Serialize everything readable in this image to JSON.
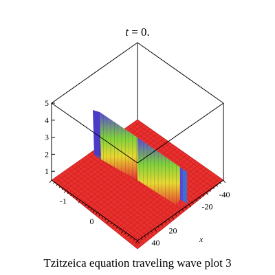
{
  "chart_data": {
    "type": "surface3d",
    "title": {
      "var": "t",
      "rest": " = 0."
    },
    "caption": "Tzitzeica equation  traveling wave plot 3",
    "x_axis": {
      "label": "x",
      "ticks": [
        "-40",
        "-20",
        "20",
        "40"
      ],
      "tick_values": [
        -40,
        -20,
        20,
        40
      ],
      "range": [
        -50,
        50
      ]
    },
    "y_axis": {
      "ticks": [
        "-1",
        "0"
      ],
      "tick_values": [
        -1,
        0
      ],
      "range": [
        -1.5,
        1.5
      ]
    },
    "z_axis": {
      "ticks": [
        "1",
        "2",
        "3",
        "4",
        "5"
      ],
      "tick_values": [
        1,
        2,
        3,
        4,
        5
      ],
      "range": [
        0,
        5
      ]
    },
    "surface": {
      "base_level": 0.6,
      "profile": [
        {
          "x": -50,
          "z": 0.6
        },
        {
          "x": -20,
          "z": 0.6
        },
        {
          "x": -11,
          "z": 0.62
        },
        {
          "x": -10,
          "z": 0.8
        },
        {
          "x": -9.5,
          "z": 2.3
        },
        {
          "x": -9,
          "z": 2.9
        },
        {
          "x": -6,
          "z": 2.5
        },
        {
          "x": -3,
          "z": 2.2
        },
        {
          "x": 0,
          "z": 2.4
        },
        {
          "x": 3,
          "z": 3.0
        },
        {
          "x": 6,
          "z": 3.7
        },
        {
          "x": 10,
          "z": 4.45
        },
        {
          "x": 11,
          "z": 4.55
        },
        {
          "x": 11.5,
          "z": 1.2
        },
        {
          "x": 12,
          "z": 0.6
        },
        {
          "x": 50,
          "z": 0.6
        }
      ],
      "base_color": "#e8302e",
      "grid_color": "#b80c0c",
      "peak_colors": [
        "#e8302e",
        "#e9d930",
        "#7fd23a",
        "#5a48d8"
      ]
    }
  }
}
